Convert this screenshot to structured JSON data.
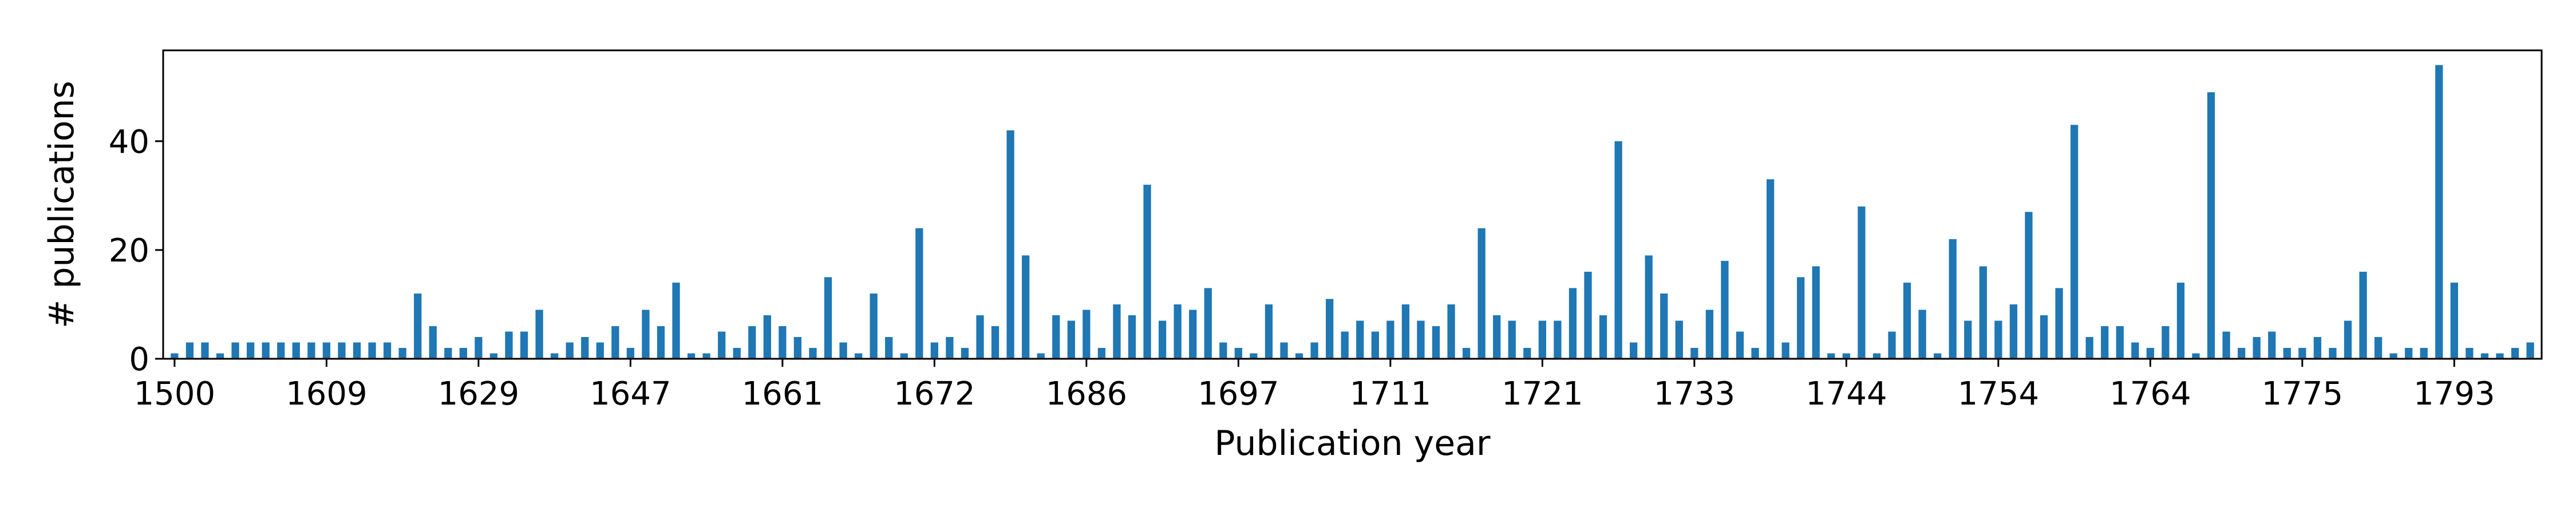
{
  "chart_data": {
    "type": "bar",
    "xlabel": "Publication year",
    "ylabel": "# publications",
    "bar_color": "#1f77b4",
    "grid": false,
    "ylim": [
      0,
      56.7
    ],
    "yticks": [
      0,
      20,
      40
    ],
    "xtick_labels": [
      {
        "index": 0,
        "label": "1500"
      },
      {
        "index": 10,
        "label": "1609"
      },
      {
        "index": 20,
        "label": "1629"
      },
      {
        "index": 30,
        "label": "1647"
      },
      {
        "index": 40,
        "label": "1661"
      },
      {
        "index": 50,
        "label": "1672"
      },
      {
        "index": 60,
        "label": "1686"
      },
      {
        "index": 70,
        "label": "1697"
      },
      {
        "index": 80,
        "label": "1711"
      },
      {
        "index": 90,
        "label": "1721"
      },
      {
        "index": 100,
        "label": "1733"
      },
      {
        "index": 110,
        "label": "1744"
      },
      {
        "index": 120,
        "label": "1754"
      },
      {
        "index": 130,
        "label": "1764"
      },
      {
        "index": 140,
        "label": "1775"
      },
      {
        "index": 150,
        "label": "1793"
      }
    ],
    "values": [
      1,
      3,
      3,
      1,
      3,
      3,
      3,
      3,
      3,
      3,
      3,
      3,
      3,
      3,
      3,
      2,
      12,
      6,
      2,
      2,
      4,
      1,
      5,
      5,
      9,
      1,
      3,
      4,
      3,
      6,
      2,
      9,
      6,
      14,
      1,
      1,
      5,
      2,
      6,
      8,
      6,
      4,
      2,
      15,
      3,
      1,
      12,
      4,
      1,
      24,
      3,
      4,
      2,
      8,
      6,
      42,
      19,
      1,
      8,
      7,
      9,
      2,
      10,
      8,
      32,
      7,
      10,
      9,
      13,
      3,
      2,
      1,
      10,
      3,
      1,
      3,
      11,
      5,
      7,
      5,
      7,
      10,
      7,
      6,
      10,
      2,
      24,
      8,
      7,
      2,
      7,
      7,
      13,
      16,
      8,
      40,
      3,
      19,
      12,
      7,
      2,
      9,
      18,
      5,
      2,
      33,
      3,
      15,
      17,
      1,
      1,
      28,
      1,
      5,
      14,
      9,
      1,
      22,
      7,
      17,
      7,
      10,
      27,
      8,
      13,
      43,
      4,
      6,
      6,
      3,
      2,
      6,
      14,
      1,
      49,
      5,
      2,
      4,
      5,
      2,
      2,
      4,
      2,
      7,
      16,
      4,
      1,
      2,
      2,
      54,
      14,
      2,
      1,
      1,
      2,
      3
    ]
  }
}
